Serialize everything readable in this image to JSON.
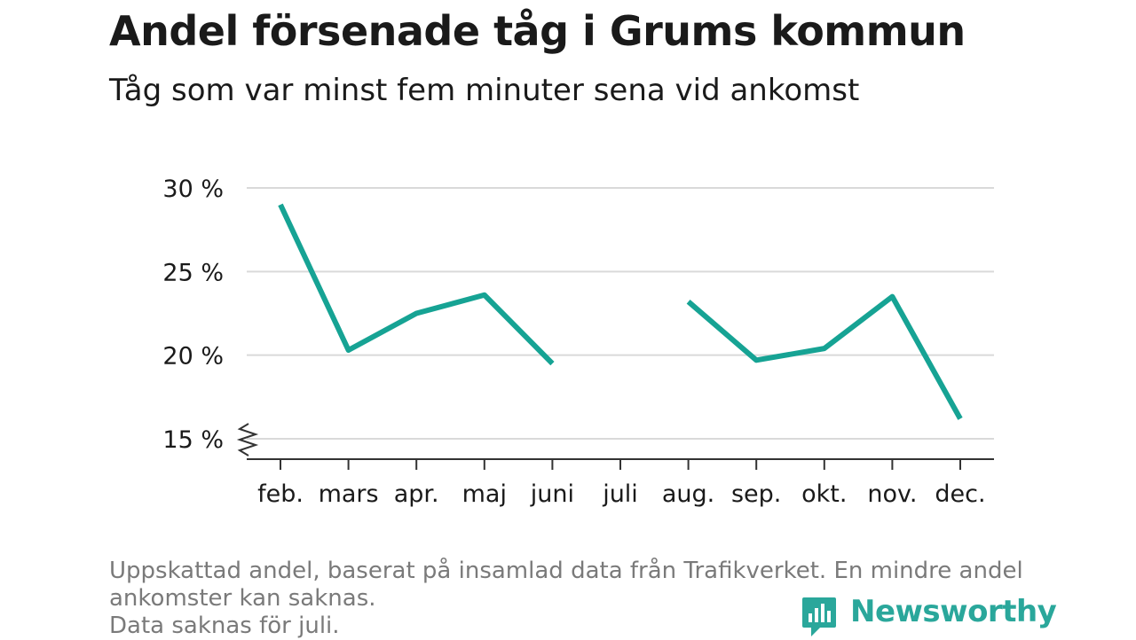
{
  "title": "Andel försenade tåg i Grums kommun",
  "subtitle": "Tåg som var minst fem minuter sena vid ankomst",
  "footnote": {
    "line1": "Uppskattad andel, baserat på insamlad data från Trafikverket. En mindre andel",
    "line2": "ankomster kan saknas.",
    "line3": "Data saknas för juli."
  },
  "brand": {
    "name": "Newsworthy",
    "icon": "newsworthy-bar-chart-logo-icon",
    "color": "#2aa79b"
  },
  "colors": {
    "line": "#16a394",
    "grid": "#d9d9d9",
    "axis": "#333333",
    "text": "#1a1a1a",
    "footnote": "#7a7a7a"
  },
  "chart_data": {
    "type": "line",
    "categories": [
      "feb.",
      "mars",
      "apr.",
      "maj",
      "juni",
      "juli",
      "aug.",
      "sep.",
      "okt.",
      "nov.",
      "dec."
    ],
    "series": [
      {
        "values": [
          29.0,
          20.3,
          22.5,
          23.6,
          19.5,
          null,
          23.2,
          19.7,
          20.4,
          23.5,
          16.2
        ]
      }
    ],
    "y_ticks": [
      15,
      20,
      25,
      30
    ],
    "y_tick_labels": [
      "15 %",
      "20 %",
      "25 %",
      "30 %"
    ],
    "ylim": [
      15,
      30
    ],
    "y_axis_break": true,
    "grid": "horizontal",
    "xlabel": "",
    "ylabel": ""
  }
}
